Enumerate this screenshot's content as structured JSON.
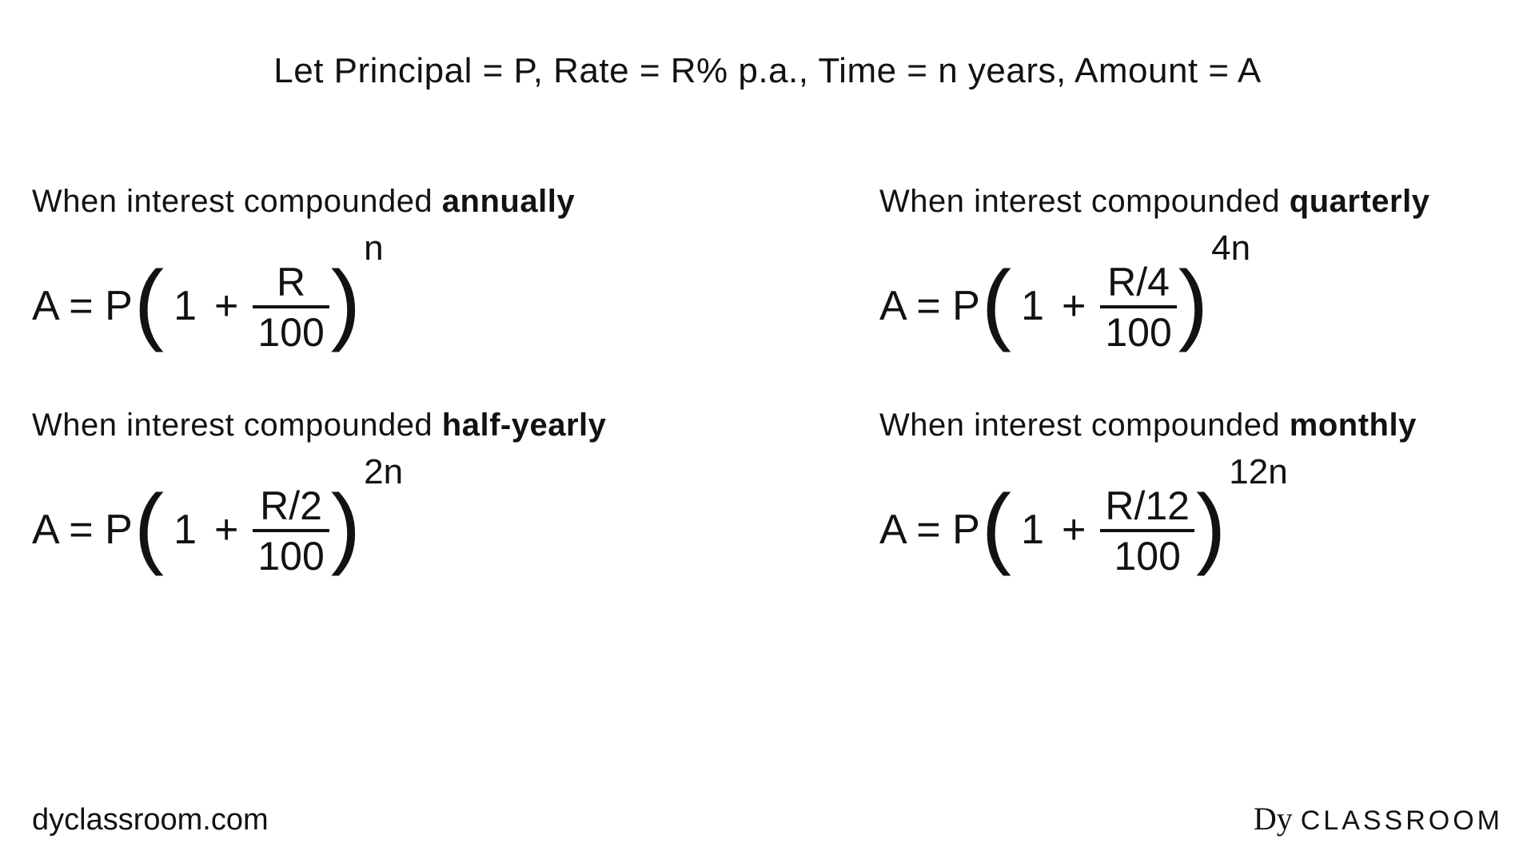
{
  "colors": {
    "text": "#121212",
    "background": "#ffffff"
  },
  "typography": {
    "body_fontsize_pt": 34,
    "formula_fontsize_pt": 40,
    "exponent_fontsize_pt": 33
  },
  "header": "Let Principal = P, Rate = R% p.a., Time = n years, Amount = A",
  "cells": [
    {
      "title_prefix": "When interest compounded ",
      "title_bold": "annually",
      "lhs": "A = P",
      "one": "1",
      "plus": "+",
      "num": "R",
      "den": "100",
      "exp": "n"
    },
    {
      "title_prefix": "When interest compounded ",
      "title_bold": "quarterly",
      "lhs": "A = P",
      "one": "1",
      "plus": "+",
      "num": "R/4",
      "den": "100",
      "exp": "4n"
    },
    {
      "title_prefix": "When interest compounded ",
      "title_bold": "half-yearly",
      "lhs": "A = P",
      "one": "1",
      "plus": "+",
      "num": "R/2",
      "den": "100",
      "exp": "2n"
    },
    {
      "title_prefix": "When interest compounded ",
      "title_bold": "monthly",
      "lhs": "A = P",
      "one": "1",
      "plus": "+",
      "num": "R/12",
      "den": "100",
      "exp": "12n"
    }
  ],
  "footer": {
    "left": "dyclassroom.com",
    "logo_script": "Dy",
    "logo_text": "CLASSROOM"
  }
}
